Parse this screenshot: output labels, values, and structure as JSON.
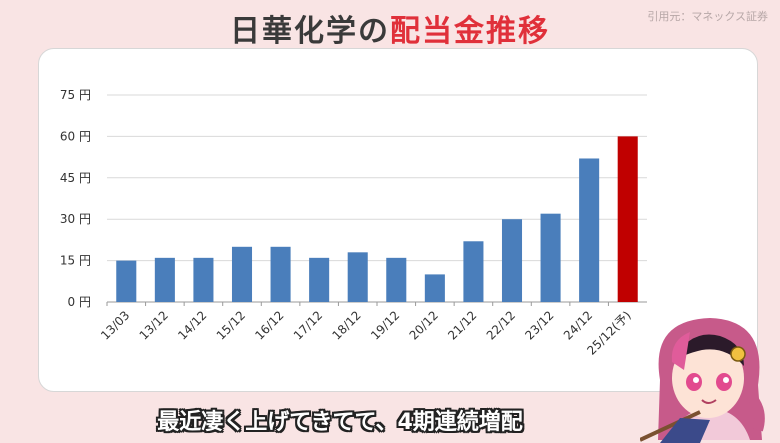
{
  "header": {
    "title_part1": "日華化学の",
    "title_part2": "配当金推移",
    "source": "引用元：マネックス証券"
  },
  "caption": "最近凄く上げてきてて、4期連続増配",
  "colors": {
    "bar": "#4a7ebb",
    "forecast": "#c00000",
    "title_accent": "#e0303a"
  },
  "chart_data": {
    "type": "bar",
    "categories": [
      "13/03",
      "13/12",
      "14/12",
      "15/12",
      "16/12",
      "17/12",
      "18/12",
      "19/12",
      "20/12",
      "21/12",
      "22/12",
      "23/12",
      "24/12",
      "25/12(予)"
    ],
    "values": [
      15,
      16,
      16,
      20,
      20,
      16,
      18,
      16,
      10,
      22,
      30,
      32,
      52,
      60
    ],
    "forecast_index": 13,
    "yticks": [
      0,
      15,
      30,
      45,
      60,
      75
    ],
    "ytick_labels": [
      "0 円",
      "15 円",
      "30 円",
      "45 円",
      "60 円",
      "75 円"
    ],
    "ylim": [
      0,
      75
    ],
    "grid": true
  }
}
